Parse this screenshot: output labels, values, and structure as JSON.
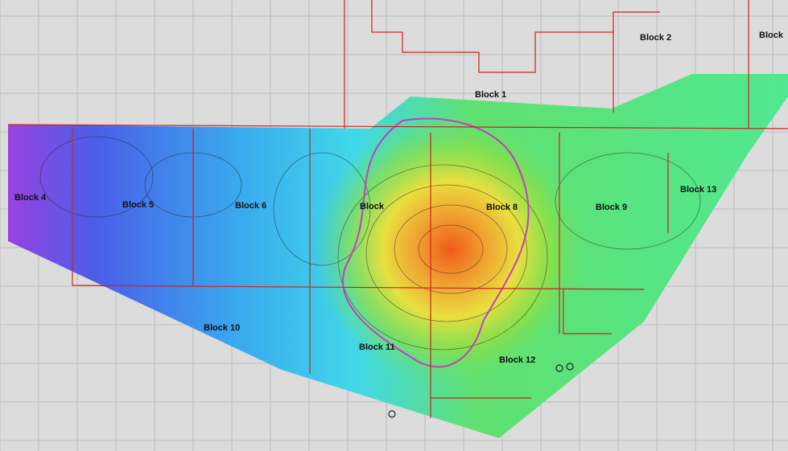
{
  "map": {
    "labels": [
      "Block 1",
      "Block 2",
      "Block",
      "Block 4",
      "Block 5",
      "Block 6",
      "Block",
      "Block 8",
      "Block 9",
      "Block 10",
      "Block 11",
      "Block 12",
      "Block 13"
    ]
  }
}
